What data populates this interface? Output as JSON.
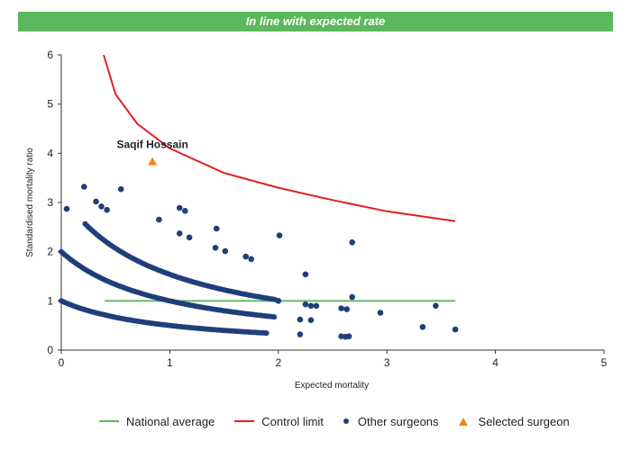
{
  "banner": {
    "text": "In line with expected rate"
  },
  "chart_data": {
    "type": "scatter",
    "title": "In line with expected rate",
    "xlabel": "Expected mortality",
    "ylabel": "Standardised mortality ratio",
    "xlim": [
      0,
      5
    ],
    "ylim": [
      0,
      6
    ],
    "x_ticks": [
      "0",
      "1",
      "2",
      "3",
      "4",
      "5"
    ],
    "y_ticks": [
      "0",
      "1",
      "2",
      "3",
      "4",
      "5",
      "6"
    ],
    "grid": false,
    "legend_position": "bottom",
    "national_average": {
      "name": "National average",
      "y": 1,
      "x_range": [
        0.4,
        3.63
      ],
      "color": "#5cb85c"
    },
    "control_limit": {
      "name": "Control limit",
      "color": "#e02020",
      "points": [
        [
          0.39,
          6.0
        ],
        [
          0.5,
          5.2
        ],
        [
          0.7,
          4.6
        ],
        [
          1.0,
          4.1
        ],
        [
          1.5,
          3.6
        ],
        [
          2.0,
          3.3
        ],
        [
          2.5,
          3.05
        ],
        [
          3.0,
          2.82
        ],
        [
          3.63,
          2.62
        ]
      ]
    },
    "selected_surgeon": {
      "name": "Selected surgeon",
      "label": "Saqif Hossain",
      "x": 0.84,
      "y": 3.83,
      "color": "#f0861a"
    },
    "other_surgeons_bands": {
      "name": "Other surgeons",
      "color": "#1f3f7a",
      "bands": [
        {
          "k": 0,
          "x_start": 0.0,
          "x_end": 1.9
        },
        {
          "k": 1,
          "x_start": 0.0,
          "x_end": 1.98
        },
        {
          "k": 2,
          "x_start": 0.22,
          "x_end": 1.98
        }
      ]
    },
    "other_surgeons_points": [
      [
        0.05,
        2.87
      ],
      [
        0.21,
        3.32
      ],
      [
        0.32,
        3.02
      ],
      [
        0.37,
        2.92
      ],
      [
        0.42,
        2.85
      ],
      [
        0.55,
        3.27
      ],
      [
        0.9,
        2.65
      ],
      [
        1.09,
        2.89
      ],
      [
        1.14,
        2.83
      ],
      [
        1.09,
        2.37
      ],
      [
        1.18,
        2.29
      ],
      [
        1.43,
        2.47
      ],
      [
        1.42,
        2.08
      ],
      [
        1.51,
        2.01
      ],
      [
        1.7,
        1.9
      ],
      [
        1.75,
        1.85
      ],
      [
        2.01,
        2.33
      ],
      [
        2.68,
        2.19
      ],
      [
        2.25,
        1.54
      ],
      [
        2.68,
        1.08
      ],
      [
        2.0,
        1.0
      ],
      [
        2.25,
        0.93
      ],
      [
        2.3,
        0.9
      ],
      [
        2.35,
        0.9
      ],
      [
        2.2,
        0.62
      ],
      [
        2.3,
        0.61
      ],
      [
        2.58,
        0.85
      ],
      [
        2.63,
        0.83
      ],
      [
        2.94,
        0.76
      ],
      [
        3.45,
        0.9
      ],
      [
        3.33,
        0.47
      ],
      [
        3.63,
        0.42
      ],
      [
        2.2,
        0.32
      ],
      [
        2.58,
        0.28
      ],
      [
        2.62,
        0.27
      ],
      [
        2.65,
        0.28
      ]
    ]
  },
  "legend": {
    "national_average": "National average",
    "control_limit": "Control limit",
    "other_surgeons": "Other surgeons",
    "selected_surgeon": "Selected surgeon"
  }
}
